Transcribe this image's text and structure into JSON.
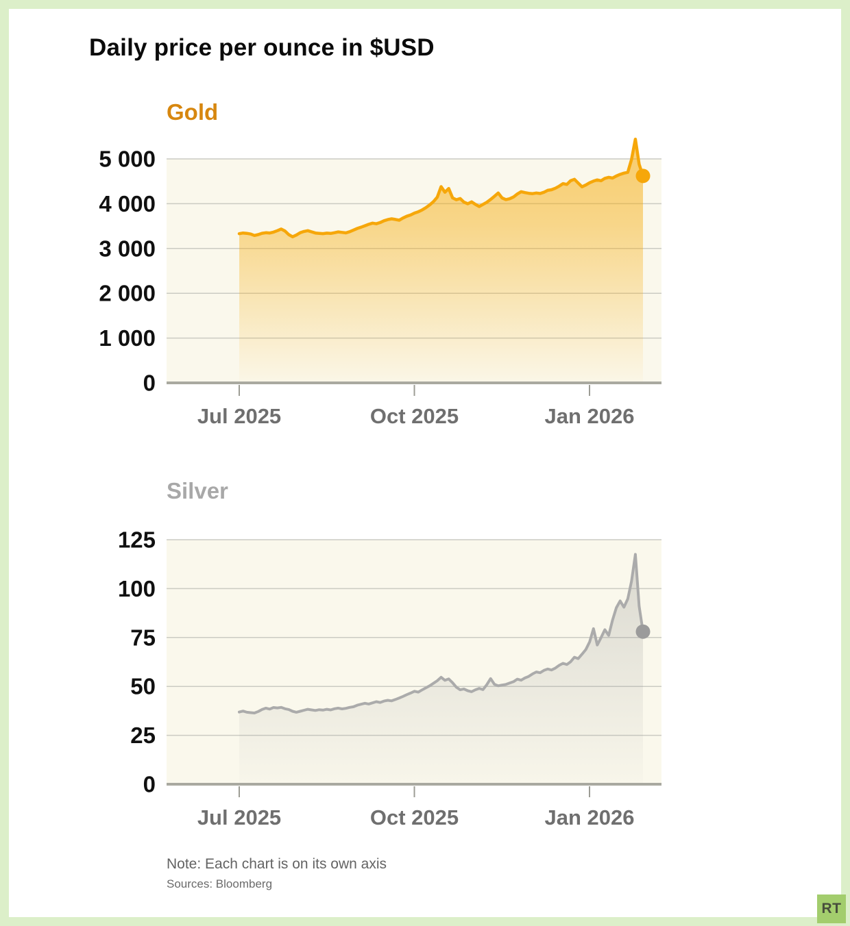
{
  "page": {
    "title": "Daily price per ounce in $USD",
    "note": "Note: Each chart is on its own axis",
    "sources": "Sources: Bloomberg",
    "logo_text": "RT"
  },
  "colors": {
    "frame_green": "#dcefc9",
    "logo_green": "#a3cd6d",
    "plot_background": "#faf8ec",
    "gridline": "#cbcbc3",
    "axis": "#a9a9a0",
    "tick": "#9c9c94",
    "gold_accent": "#f6a70a",
    "gold_title": "#d7870f",
    "silver_accent": "#ababab",
    "silver_title": "#a8a8a8",
    "x_label_gray": "#6f6f6f"
  },
  "chart_data": [
    {
      "type": "area",
      "name": "gold",
      "title": "Gold",
      "title_color": "#d7870f",
      "line_color": "#f6a70a",
      "dot_color": "#f6a70a",
      "fill_color": "#f6a700",
      "fill_alpha_top": 0.55,
      "fill_alpha_mid": 0.42,
      "x_range": "Jul 1 2025 - Jan 29 2026, daily",
      "x_ticks": [
        "Jul 2025",
        "Oct 2025",
        "Jan 2026"
      ],
      "y_ticks": [
        0,
        1000,
        2000,
        3000,
        4000,
        5000
      ],
      "y_tick_labels": [
        "0",
        "1 000",
        "2 000",
        "3 000",
        "4 000",
        "5 000"
      ],
      "ylim": [
        0,
        5000
      ],
      "grid": true,
      "legend": "none",
      "peak_value": 5440,
      "last_value": 4620,
      "values": [
        3330,
        3345,
        3338,
        3322,
        3290,
        3310,
        3340,
        3352,
        3345,
        3365,
        3398,
        3435,
        3390,
        3310,
        3262,
        3300,
        3352,
        3380,
        3398,
        3372,
        3345,
        3338,
        3332,
        3342,
        3336,
        3352,
        3370,
        3360,
        3348,
        3375,
        3412,
        3448,
        3476,
        3508,
        3540,
        3565,
        3552,
        3580,
        3620,
        3645,
        3662,
        3648,
        3632,
        3680,
        3720,
        3748,
        3790,
        3820,
        3860,
        3912,
        3972,
        4048,
        4145,
        4380,
        4255,
        4340,
        4130,
        4088,
        4115,
        4035,
        3998,
        4042,
        3985,
        3938,
        3985,
        4032,
        4095,
        4165,
        4238,
        4128,
        4092,
        4110,
        4150,
        4215,
        4268,
        4248,
        4232,
        4225,
        4238,
        4228,
        4255,
        4298,
        4312,
        4345,
        4392,
        4448,
        4430,
        4512,
        4545,
        4460,
        4378,
        4418,
        4468,
        4505,
        4530,
        4512,
        4565,
        4588,
        4572,
        4618,
        4655,
        4682,
        4700,
        4990,
        5440,
        4880,
        4620
      ]
    },
    {
      "type": "area",
      "name": "silver",
      "title": "Silver",
      "title_color": "#a8a8a8",
      "line_color": "#ababab",
      "dot_color": "#9b9b9b",
      "fill_color": "#8f8f8f",
      "fill_alpha_top": 0.3,
      "fill_alpha_mid": 0.2,
      "x_range": "Jul 1 2025 - Jan 29 2026, daily",
      "x_ticks": [
        "Jul 2025",
        "Oct 2025",
        "Jan 2026"
      ],
      "y_ticks": [
        0,
        25,
        50,
        75,
        100,
        125
      ],
      "y_tick_labels": [
        "0",
        "25",
        "50",
        "75",
        "100",
        "125"
      ],
      "ylim": [
        0,
        125
      ],
      "grid": true,
      "legend": "none",
      "peak_value": 117.5,
      "last_value": 78,
      "values": [
        36.9,
        37.4,
        36.8,
        36.6,
        36.4,
        37.2,
        38.2,
        38.9,
        38.4,
        39.2,
        39.0,
        39.3,
        38.6,
        38.2,
        37.3,
        36.8,
        37.3,
        37.8,
        38.3,
        38.0,
        37.7,
        38.1,
        37.9,
        38.3,
        38.0,
        38.6,
        38.9,
        38.5,
        38.8,
        39.3,
        39.6,
        40.4,
        40.9,
        41.4,
        41.0,
        41.6,
        42.2,
        41.8,
        42.5,
        42.9,
        42.6,
        43.3,
        44.1,
        44.9,
        45.8,
        46.6,
        47.5,
        47.1,
        48.2,
        49.3,
        50.3,
        51.6,
        52.9,
        54.7,
        53.1,
        53.8,
        51.9,
        49.6,
        48.3,
        48.7,
        47.8,
        47.3,
        48.3,
        49.0,
        48.4,
        50.9,
        54.0,
        51.1,
        50.3,
        50.7,
        51.0,
        51.7,
        52.4,
        53.7,
        53.2,
        54.3,
        55.1,
        56.4,
        57.4,
        57.0,
        58.2,
        58.9,
        58.4,
        59.4,
        60.8,
        61.8,
        61.2,
        62.6,
        64.9,
        64.2,
        66.5,
        68.9,
        72.8,
        79.5,
        71.2,
        75.0,
        79.0,
        76.1,
        83.8,
        90.2,
        93.7,
        90.5,
        94.7,
        103.8,
        117.5,
        91.0,
        78.0
      ]
    }
  ]
}
